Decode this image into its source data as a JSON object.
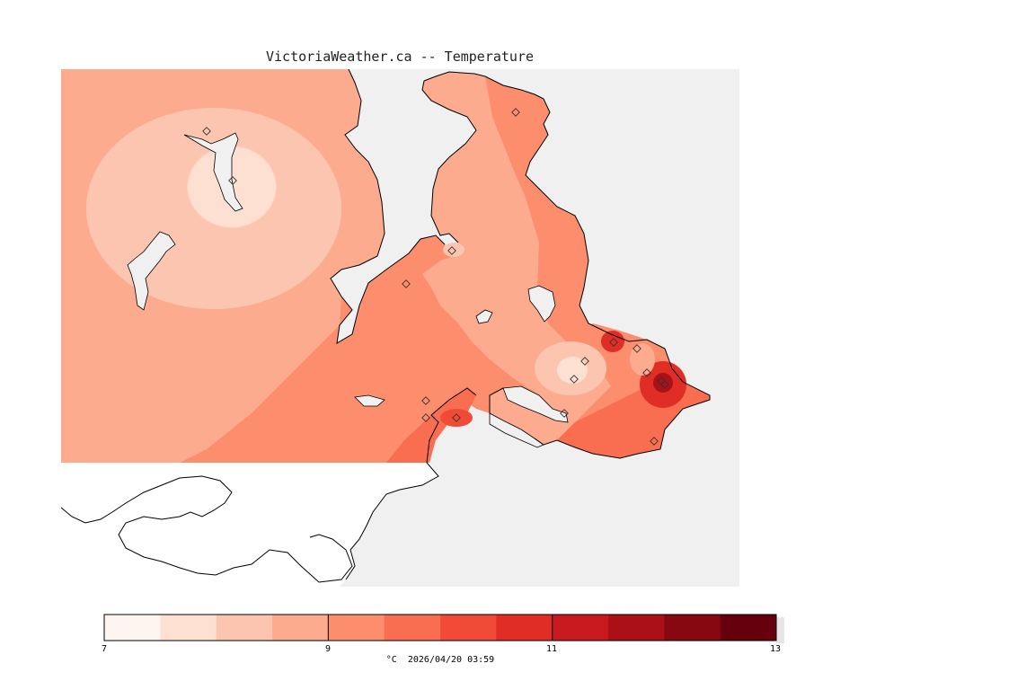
{
  "title": "VictoriaWeather.ca -- Temperature",
  "legend": {
    "unit": "°C",
    "timestamp": "2026/04/20 03:59",
    "min": 7,
    "max": 13,
    "tick_labels": [
      "7",
      "9",
      "11",
      "13"
    ],
    "colors": [
      "#fff5f0",
      "#fee0d2",
      "#fcc5b0",
      "#fcab8f",
      "#fc8e6e",
      "#f96e51",
      "#f14b37",
      "#e02e27",
      "#c8191e",
      "#ab1016",
      "#880811",
      "#67000d"
    ]
  },
  "map": {
    "background_color": "#f0f0f0",
    "land_color": "#fc8e6e",
    "station_icon": "diamond-icon"
  }
}
